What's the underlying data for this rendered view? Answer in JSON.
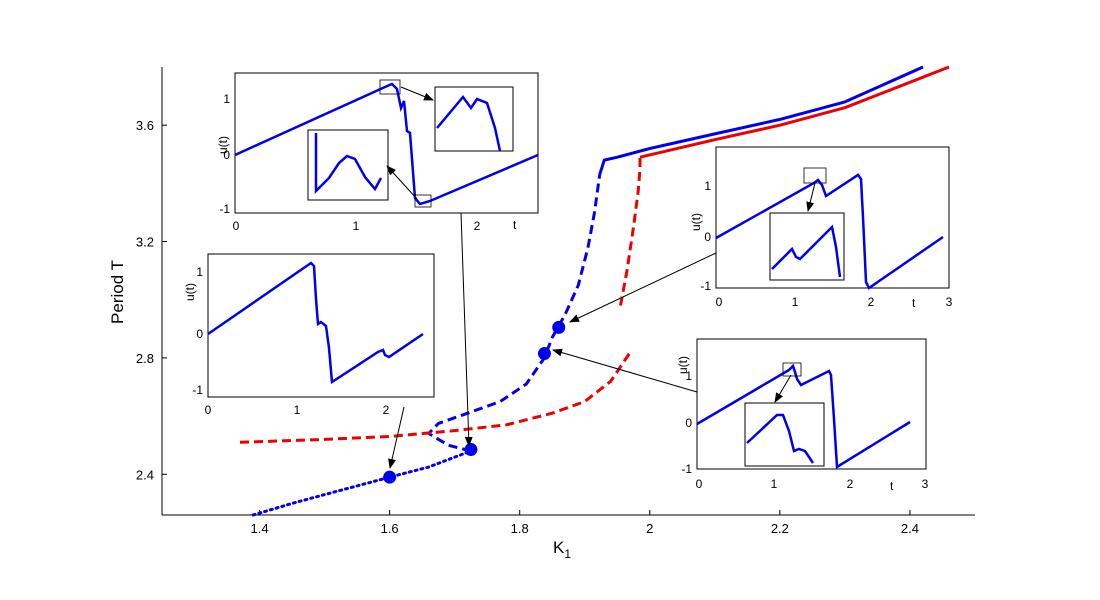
{
  "chart_data": {
    "type": "line",
    "title": "",
    "xlabel": "K",
    "xlabel_sub": "1",
    "ylabel": "Period T",
    "xlim": [
      1.25,
      2.5
    ],
    "ylim": [
      2.26,
      3.8
    ],
    "xticks": [
      1.4,
      1.6,
      1.8,
      2,
      2.2,
      2.4
    ],
    "xtick_labels": [
      "1.4",
      "1.6",
      "1.8",
      "2",
      "2.2",
      "2.4"
    ],
    "yticks": [
      2.4,
      2.8,
      3.2,
      3.6
    ],
    "ytick_labels": [
      "2.4",
      "2.8",
      "3.2",
      "3.6"
    ],
    "colors": {
      "blue": "#0000ee",
      "red": "#ee0000"
    },
    "series": [
      {
        "color": "blue",
        "style": "dotted",
        "points": [
          [
            1.39,
            2.26
          ],
          [
            1.45,
            2.3
          ],
          [
            1.5,
            2.33
          ],
          [
            1.55,
            2.36
          ],
          [
            1.6,
            2.39
          ],
          [
            1.66,
            2.425
          ],
          [
            1.725,
            2.48
          ]
        ]
      },
      {
        "color": "blue",
        "style": "dashed",
        "points": [
          [
            1.725,
            2.48
          ],
          [
            1.69,
            2.5
          ],
          [
            1.66,
            2.54
          ],
          [
            1.675,
            2.575
          ],
          [
            1.72,
            2.61
          ],
          [
            1.77,
            2.65
          ],
          [
            1.81,
            2.71
          ],
          [
            1.838,
            2.8
          ],
          [
            1.85,
            2.87
          ],
          [
            1.87,
            2.95
          ],
          [
            1.89,
            3.05
          ],
          [
            1.905,
            3.18
          ],
          [
            1.915,
            3.3
          ],
          [
            1.923,
            3.43
          ]
        ]
      },
      {
        "color": "blue",
        "style": "solid",
        "points": [
          [
            1.923,
            3.43
          ],
          [
            1.93,
            3.48
          ],
          [
            1.95,
            3.49
          ],
          [
            2.0,
            3.52
          ],
          [
            2.1,
            3.57
          ],
          [
            2.2,
            3.62
          ],
          [
            2.3,
            3.68
          ],
          [
            2.42,
            3.8
          ]
        ]
      },
      {
        "color": "red",
        "style": "dashed",
        "points": [
          [
            1.37,
            2.51
          ],
          [
            1.5,
            2.52
          ],
          [
            1.6,
            2.53
          ],
          [
            1.7,
            2.55
          ],
          [
            1.78,
            2.57
          ],
          [
            1.85,
            2.61
          ],
          [
            1.9,
            2.65
          ],
          [
            1.94,
            2.72
          ],
          [
            1.97,
            2.82
          ]
        ]
      },
      {
        "color": "red",
        "style": "dashed",
        "points": [
          [
            1.955,
            2.98
          ],
          [
            1.965,
            3.1
          ],
          [
            1.975,
            3.25
          ],
          [
            1.982,
            3.37
          ],
          [
            1.985,
            3.45
          ],
          [
            1.985,
            3.49
          ]
        ]
      },
      {
        "color": "red",
        "style": "solid",
        "points": [
          [
            1.985,
            3.49
          ],
          [
            2.1,
            3.55
          ],
          [
            2.2,
            3.6
          ],
          [
            2.3,
            3.66
          ],
          [
            2.46,
            3.8
          ]
        ]
      }
    ],
    "markers": [
      {
        "x": 1.6,
        "y": 2.39
      },
      {
        "x": 1.725,
        "y": 2.485
      },
      {
        "x": 1.838,
        "y": 2.815
      },
      {
        "x": 1.86,
        "y": 2.905
      }
    ],
    "insets": [
      {
        "id": "a",
        "ylabel": "u(t)",
        "xlabel": "t",
        "xticks": [
          "0",
          "1",
          "2"
        ],
        "yticks": [
          "1",
          "0",
          "-1"
        ]
      },
      {
        "id": "b",
        "ylabel": "u(t)",
        "xlabel": "",
        "xticks": [
          "0",
          "1",
          "2"
        ],
        "yticks": [
          "1",
          "0",
          "-1"
        ]
      },
      {
        "id": "c",
        "ylabel": "u(t)",
        "xlabel": "t",
        "xticks": [
          "0",
          "1",
          "2",
          "3"
        ],
        "yticks": [
          "1",
          "0",
          "-1"
        ]
      },
      {
        "id": "d",
        "ylabel": "u(t)",
        "xlabel": "t",
        "xticks": [
          "0",
          "1",
          "2",
          "3"
        ],
        "yticks": [
          "1",
          "0",
          "-1"
        ]
      }
    ]
  }
}
